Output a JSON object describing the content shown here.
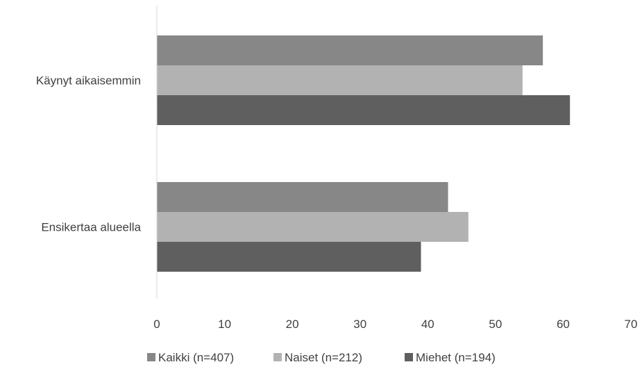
{
  "chart_data": {
    "type": "bar",
    "orientation": "horizontal",
    "categories": [
      "Käynyt aikaisemmin",
      "Ensikertaa alueella"
    ],
    "series": [
      {
        "name": "Kaikki (n=407)",
        "values": [
          57,
          43
        ],
        "color": "#878787"
      },
      {
        "name": "Naiset (n=212)",
        "values": [
          54,
          46
        ],
        "color": "#b2b2b2"
      },
      {
        "name": "Miehet (n=194)",
        "values": [
          61,
          39
        ],
        "color": "#5f5f5f"
      }
    ],
    "xlim": [
      0,
      70
    ],
    "xticks": [
      "0",
      "10",
      "20",
      "30",
      "40",
      "50",
      "60",
      "70"
    ],
    "grid": false,
    "legend_position": "bottom"
  }
}
